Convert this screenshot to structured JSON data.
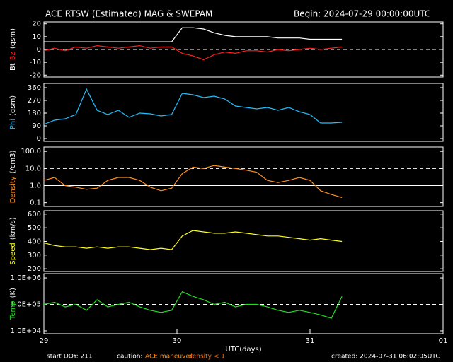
{
  "header": {
    "title": "ACE RTSW (Estimated) MAG & SWEPAM",
    "begin": "Begin: 2024-07-29 00:00:00UTC"
  },
  "footer": {
    "start": "start DOY: 211",
    "caution": "caution:",
    "maneuver": "ACE maneuver",
    "density": "density < 1",
    "created": "created: 2024-07-31 06:02:05UTC"
  },
  "chart_data": [
    {
      "type": "line",
      "ylabel": [
        "Bt",
        "Bz",
        "(gsm)"
      ],
      "ylabel_colors": [
        "#ffffff",
        "#ff2020",
        "#ffffff"
      ],
      "xlim": [
        0,
        3
      ],
      "ylim": [
        -21.5,
        21.5
      ],
      "yticks": [
        20,
        10,
        0,
        -10,
        -20
      ],
      "log": false,
      "reflines": [
        0
      ],
      "series": [
        {
          "name": "Bt",
          "color": "#ffffff",
          "x": [
            0,
            0.08,
            0.16,
            0.24,
            0.32,
            0.4,
            0.48,
            0.56,
            0.64,
            0.72,
            0.8,
            0.88,
            0.96,
            1.04,
            1.12,
            1.2,
            1.28,
            1.36,
            1.44,
            1.52,
            1.6,
            1.68,
            1.76,
            1.84,
            1.92,
            2,
            2.08,
            2.16,
            2.24
          ],
          "values": [
            6,
            6,
            6,
            6,
            6,
            6,
            6,
            6,
            6,
            6,
            6,
            6,
            6,
            17,
            17,
            16,
            13,
            11,
            10,
            10,
            10,
            10,
            9,
            9,
            9,
            8,
            8,
            8,
            8
          ]
        },
        {
          "name": "Bz",
          "color": "#ff2020",
          "x": [
            0,
            0.08,
            0.16,
            0.24,
            0.32,
            0.4,
            0.48,
            0.56,
            0.64,
            0.72,
            0.8,
            0.88,
            0.96,
            1.04,
            1.12,
            1.2,
            1.28,
            1.36,
            1.44,
            1.52,
            1.6,
            1.68,
            1.76,
            1.84,
            1.92,
            2,
            2.08,
            2.16,
            2.24
          ],
          "values": [
            -1,
            1,
            -1,
            2,
            1,
            3,
            2,
            1,
            2,
            3,
            1,
            2,
            2,
            -3,
            -5,
            -8,
            -4,
            -2,
            -3,
            -1,
            -1,
            -2,
            0,
            -1,
            0,
            1,
            0,
            1,
            2
          ]
        }
      ]
    },
    {
      "type": "line",
      "ylabel": [
        "Phi",
        "(gsm)"
      ],
      "ylabel_colors": [
        "#20c0ff",
        "#ffffff"
      ],
      "xlim": [
        0,
        3
      ],
      "ylim": [
        -20,
        390
      ],
      "yticks": [
        360,
        270,
        180,
        90,
        0
      ],
      "log": false,
      "reflines": [],
      "series": [
        {
          "name": "Phi",
          "color": "#20c0ff",
          "x": [
            0,
            0.08,
            0.16,
            0.24,
            0.32,
            0.4,
            0.48,
            0.56,
            0.64,
            0.72,
            0.8,
            0.88,
            0.96,
            1.04,
            1.12,
            1.2,
            1.28,
            1.36,
            1.44,
            1.52,
            1.6,
            1.68,
            1.76,
            1.84,
            1.92,
            2,
            2.08,
            2.16,
            2.24
          ],
          "values": [
            100,
            130,
            140,
            170,
            350,
            200,
            170,
            200,
            150,
            180,
            175,
            160,
            170,
            320,
            310,
            290,
            300,
            280,
            230,
            220,
            210,
            220,
            200,
            220,
            190,
            170,
            110,
            110,
            115
          ]
        }
      ]
    },
    {
      "type": "line",
      "ylabel": [
        "Density",
        "(/cm3)"
      ],
      "ylabel_colors": [
        "#ff9020",
        "#ffffff"
      ],
      "xlim": [
        0,
        3
      ],
      "ylim": [
        0.06,
        180
      ],
      "log": true,
      "reflines": [
        10,
        1
      ],
      "yticks": [
        {
          "value": 100,
          "label": "100.0"
        },
        {
          "value": 10,
          "label": "10.0"
        },
        {
          "value": 1,
          "label": "1.0"
        },
        0.1
      ],
      "series": [
        {
          "name": "Density",
          "color": "#ff9020",
          "x": [
            0,
            0.08,
            0.16,
            0.24,
            0.32,
            0.4,
            0.48,
            0.56,
            0.64,
            0.72,
            0.8,
            0.88,
            0.96,
            1.04,
            1.12,
            1.2,
            1.28,
            1.36,
            1.44,
            1.52,
            1.6,
            1.68,
            1.76,
            1.84,
            1.92,
            2,
            2.08,
            2.16,
            2.24
          ],
          "values": [
            2,
            3,
            1,
            0.8,
            0.6,
            0.7,
            2,
            3,
            3,
            2,
            0.8,
            0.5,
            0.7,
            5,
            12,
            10,
            15,
            12,
            10,
            8,
            6,
            2,
            1.5,
            2,
            3,
            2,
            0.5,
            0.3,
            0.2
          ]
        }
      ]
    },
    {
      "type": "line",
      "ylabel": [
        "Speed",
        "(km/s)"
      ],
      "ylabel_colors": [
        "#ffff20",
        "#ffffff"
      ],
      "xlim": [
        0,
        3
      ],
      "ylim": [
        180,
        625
      ],
      "yticks": [
        600,
        500,
        400,
        300,
        200
      ],
      "log": false,
      "reflines": [],
      "series": [
        {
          "name": "Speed",
          "color": "#ffff20",
          "x": [
            0,
            0.08,
            0.16,
            0.24,
            0.32,
            0.4,
            0.48,
            0.56,
            0.64,
            0.72,
            0.8,
            0.88,
            0.96,
            1.04,
            1.12,
            1.2,
            1.28,
            1.36,
            1.44,
            1.52,
            1.6,
            1.68,
            1.76,
            1.84,
            1.92,
            2,
            2.08,
            2.16,
            2.24
          ],
          "values": [
            390,
            370,
            360,
            360,
            350,
            360,
            350,
            360,
            360,
            350,
            340,
            350,
            340,
            440,
            480,
            470,
            460,
            460,
            470,
            460,
            450,
            440,
            440,
            430,
            420,
            410,
            420,
            410,
            400
          ]
        }
      ]
    },
    {
      "type": "line",
      "ylabel": [
        "Temp",
        "(K)"
      ],
      "ylabel_colors": [
        "#20e020",
        "#ffffff"
      ],
      "xlim": [
        0,
        3
      ],
      "ylim": [
        7800,
        1450000
      ],
      "log": true,
      "reflines": [
        100000
      ],
      "yticks": [
        {
          "value": 1000000,
          "label": "1.0E+06"
        },
        {
          "value": 100000,
          "label": "1.0E+05"
        },
        {
          "value": 10000,
          "label": "1.0E+04"
        }
      ],
      "xticks": [
        {
          "value": 0,
          "label": "29"
        },
        {
          "value": 1,
          "label": "30"
        },
        {
          "value": 2,
          "label": "31"
        },
        {
          "value": 3,
          "label": "01"
        }
      ],
      "xlabel": "UTC(days)",
      "series": [
        {
          "name": "Temp",
          "color": "#20e020",
          "x": [
            0,
            0.08,
            0.16,
            0.24,
            0.32,
            0.4,
            0.48,
            0.56,
            0.64,
            0.72,
            0.8,
            0.88,
            0.96,
            1.04,
            1.12,
            1.2,
            1.28,
            1.36,
            1.44,
            1.52,
            1.6,
            1.68,
            1.76,
            1.84,
            1.92,
            2,
            2.08,
            2.16,
            2.24
          ],
          "values": [
            100000,
            120000,
            80000,
            100000,
            60000,
            150000,
            80000,
            100000,
            120000,
            80000,
            60000,
            50000,
            60000,
            300000,
            200000,
            150000,
            100000,
            120000,
            80000,
            100000,
            100000,
            80000,
            60000,
            50000,
            60000,
            50000,
            40000,
            30000,
            200000
          ]
        }
      ]
    }
  ]
}
